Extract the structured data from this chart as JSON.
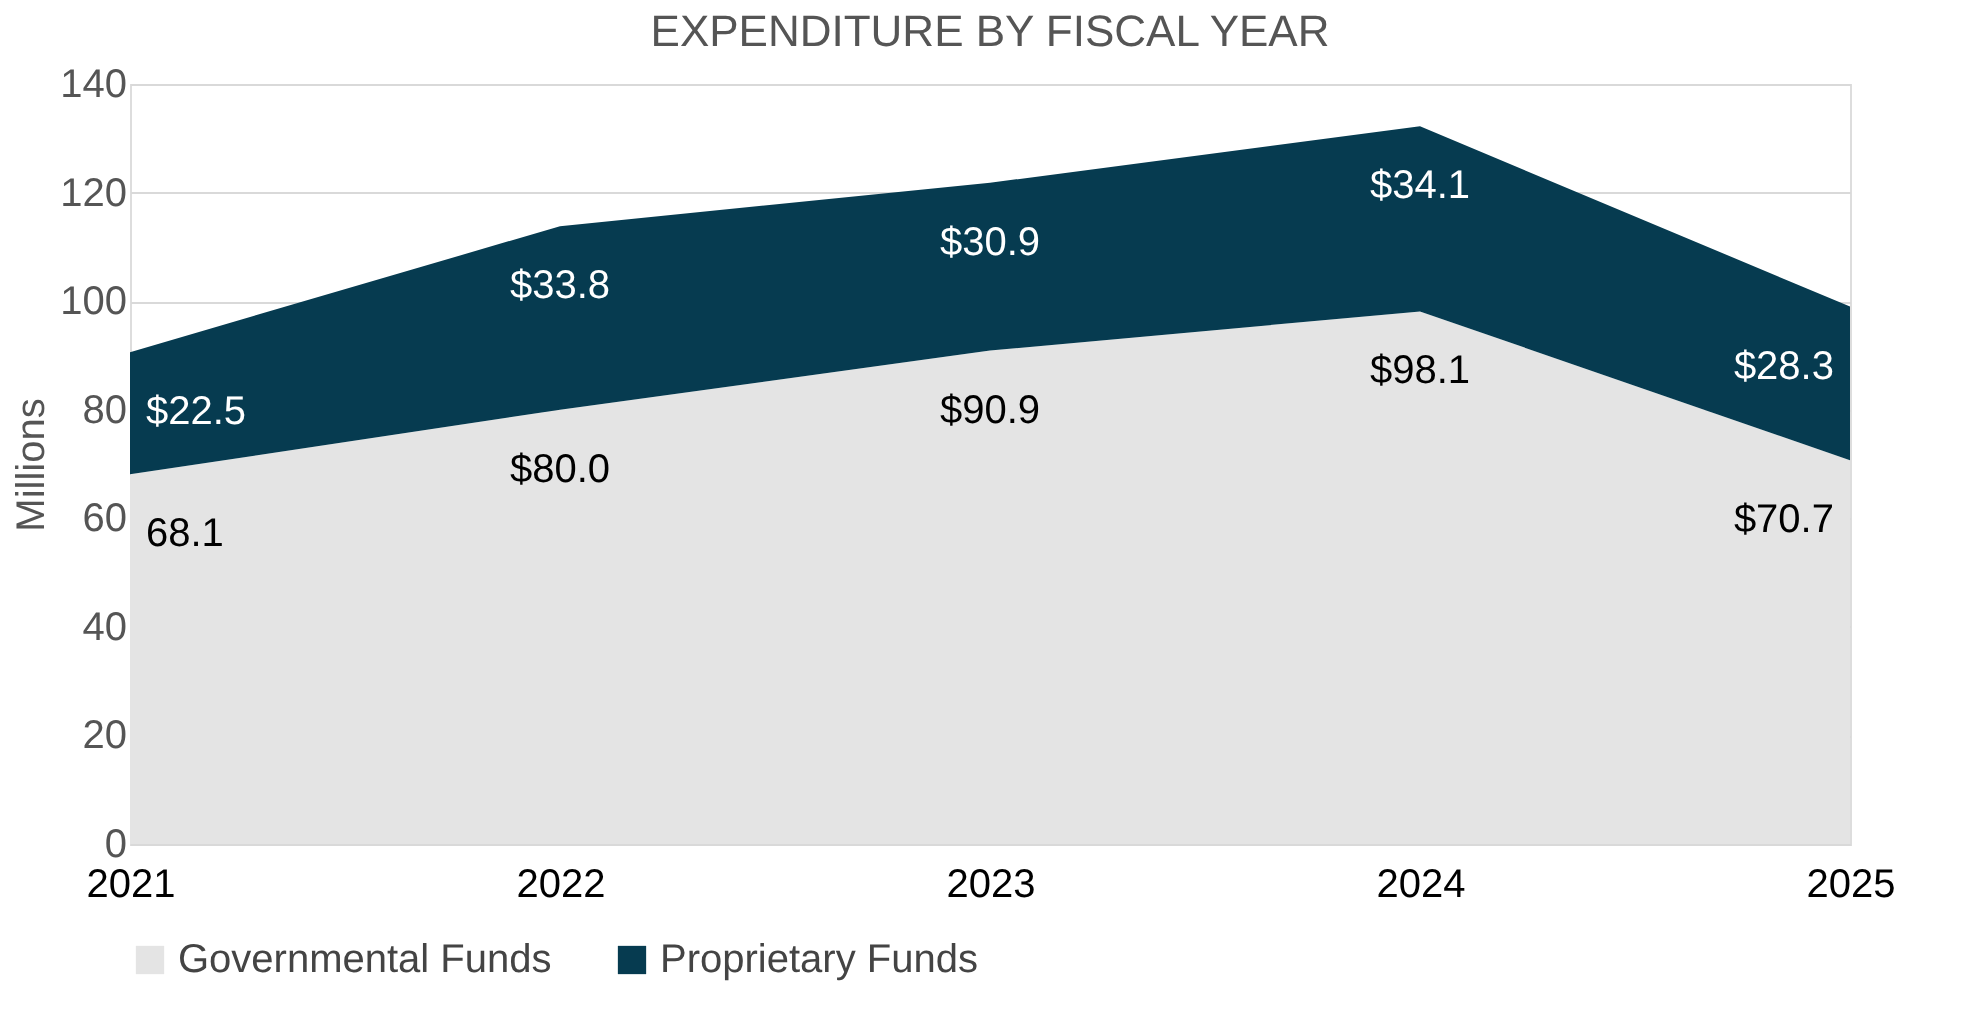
{
  "chart_data": {
    "type": "area",
    "title": "EXPENDITURE BY FISCAL YEAR",
    "ylabel": "Millions",
    "categories": [
      "2021",
      "2022",
      "2023",
      "2024",
      "2025"
    ],
    "stacked": true,
    "series": [
      {
        "name": "Governmental Funds",
        "color": "#e4e4e4",
        "values": [
          68.1,
          80.0,
          90.9,
          98.1,
          70.7
        ],
        "value_labels": [
          "68.1",
          "$80.0",
          "$90.9",
          "$98.1",
          "$70.7"
        ]
      },
      {
        "name": "Proprietary Funds",
        "color": "#063b50",
        "values": [
          22.5,
          33.8,
          30.9,
          34.1,
          28.3
        ],
        "value_labels": [
          "$22.5",
          "$33.8",
          "$30.9",
          "$34.1",
          "$28.3"
        ]
      }
    ],
    "ylim": [
      0,
      140
    ],
    "yticks": [
      0,
      20,
      40,
      60,
      80,
      100,
      120,
      140
    ],
    "grid": "y",
    "legend": "bottom"
  }
}
